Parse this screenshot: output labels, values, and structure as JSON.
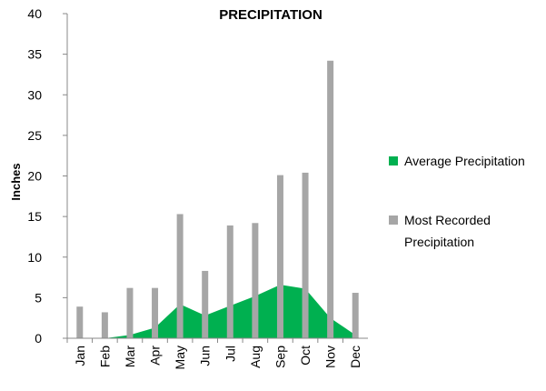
{
  "chart_data": {
    "type": "bar",
    "title": "PRECIPITATION",
    "y_label": "Inches",
    "categories": [
      "Jan",
      "Feb",
      "Mar",
      "Apr",
      "May",
      "Jun",
      "Jul",
      "Aug",
      "Sep",
      "Oct",
      "Nov",
      "Dec"
    ],
    "series": [
      {
        "name": "Average Precipitation",
        "type": "area",
        "color": "#00b050",
        "values": [
          0,
          0,
          0.4,
          1.3,
          4.2,
          2.8,
          4.0,
          5.2,
          6.6,
          6.1,
          2.5,
          0.4
        ]
      },
      {
        "name": "Most Recorded Precipitation",
        "type": "bar",
        "color": "#a6a6a6",
        "values": [
          3.9,
          3.2,
          6.2,
          6.2,
          15.3,
          8.3,
          13.9,
          14.2,
          20.1,
          20.4,
          34.2,
          5.6
        ]
      }
    ],
    "ylim": [
      0,
      40
    ],
    "yticks": [
      0,
      5,
      10,
      15,
      20,
      25,
      30,
      35,
      40
    ],
    "grid": false
  }
}
